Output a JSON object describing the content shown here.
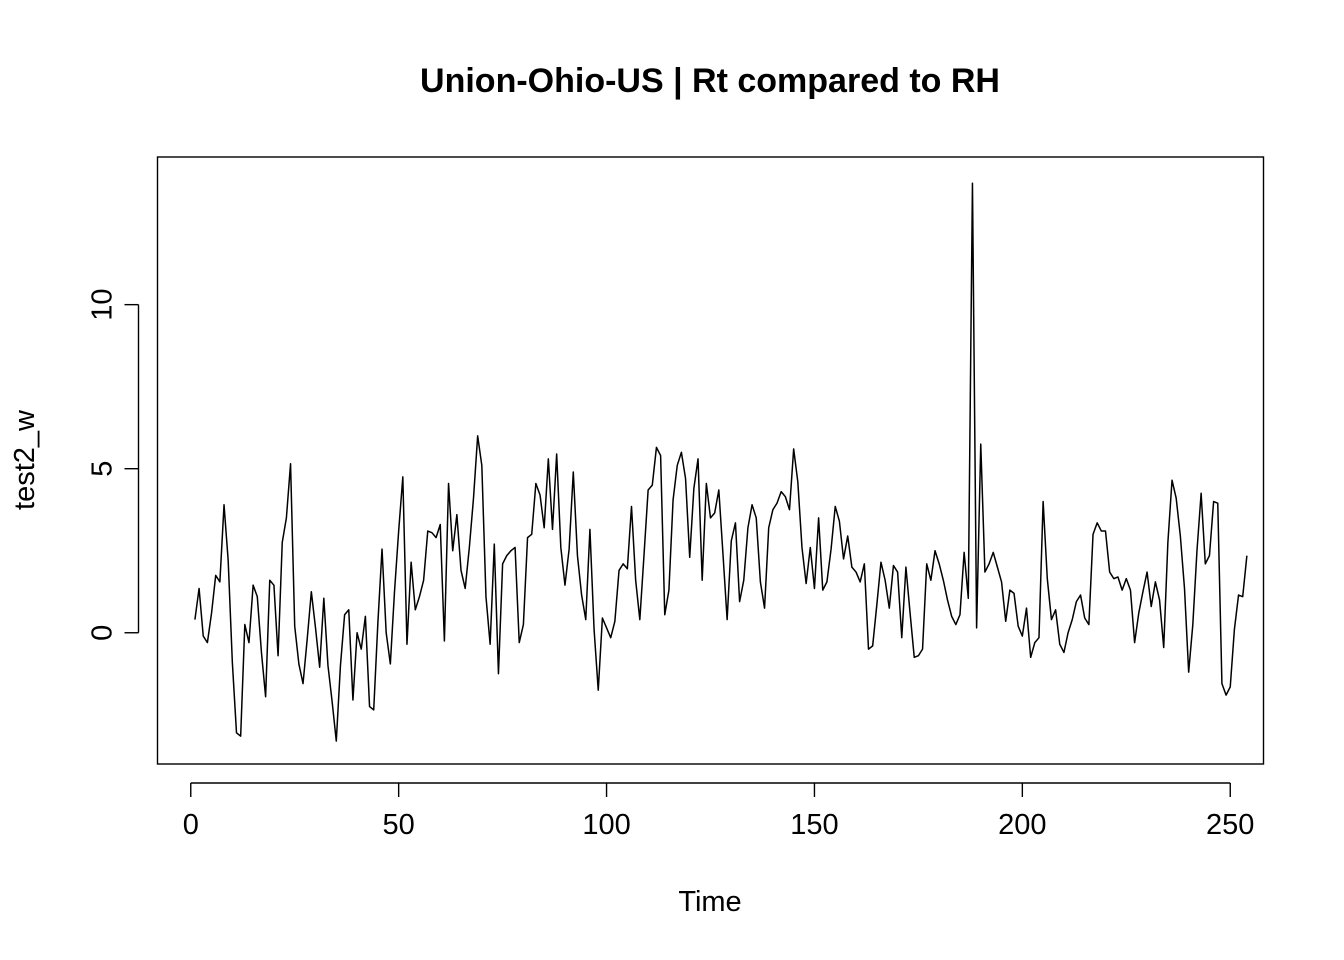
{
  "chart_data": {
    "type": "line",
    "title": "Union-Ohio-US | Rt compared to RH",
    "xlabel": "Time",
    "ylabel": "test2_w",
    "xlim": [
      -8,
      258
    ],
    "ylim": [
      -4,
      14.5
    ],
    "x_ticks": [
      0,
      50,
      100,
      150,
      200,
      250
    ],
    "y_ticks": [
      0,
      5,
      10
    ],
    "grid": false,
    "legend": "none",
    "line_color": "#000000",
    "series": [
      {
        "x_start": 1,
        "x_step": 1,
        "values": [
          0.4,
          1.35,
          -0.1,
          -0.3,
          0.6,
          1.75,
          1.55,
          3.9,
          2.2,
          -0.9,
          -3.05,
          -3.15,
          0.25,
          -0.3,
          1.45,
          1.1,
          -0.6,
          -1.95,
          1.6,
          1.45,
          -0.7,
          2.75,
          3.5,
          5.15,
          0.2,
          -0.95,
          -1.55,
          -0.2,
          1.25,
          0.15,
          -1.05,
          1.05,
          -1.0,
          -2.1,
          -3.3,
          -1.0,
          0.55,
          0.7,
          -2.05,
          0.0,
          -0.5,
          0.5,
          -2.25,
          -2.35,
          0.3,
          2.55,
          0.0,
          -0.95,
          1.25,
          3.1,
          4.75,
          -0.35,
          2.15,
          0.7,
          1.1,
          1.6,
          3.1,
          3.05,
          2.9,
          3.3,
          -0.25,
          4.55,
          2.5,
          3.6,
          1.9,
          1.35,
          2.6,
          4.1,
          6.0,
          5.1,
          1.1,
          -0.35,
          2.7,
          -1.25,
          2.1,
          2.35,
          2.5,
          2.6,
          -0.3,
          0.25,
          2.9,
          3.0,
          4.55,
          4.2,
          3.2,
          5.3,
          3.15,
          5.45,
          2.6,
          1.45,
          2.55,
          4.9,
          2.35,
          1.15,
          0.4,
          3.15,
          0.1,
          -1.75,
          0.45,
          0.15,
          -0.15,
          0.35,
          1.9,
          2.1,
          1.95,
          3.85,
          1.6,
          0.4,
          2.35,
          4.35,
          4.5,
          5.65,
          5.4,
          0.55,
          1.3,
          4.05,
          5.1,
          5.5,
          4.7,
          2.3,
          4.4,
          5.3,
          1.6,
          4.55,
          3.5,
          3.65,
          4.35,
          2.4,
          0.4,
          2.8,
          3.35,
          0.95,
          1.6,
          3.2,
          3.9,
          3.5,
          1.55,
          0.75,
          3.2,
          3.75,
          3.95,
          4.3,
          4.15,
          3.75,
          5.6,
          4.6,
          2.6,
          1.5,
          2.6,
          1.35,
          3.5,
          1.3,
          1.55,
          2.55,
          3.85,
          3.4,
          2.25,
          2.95,
          2.0,
          1.85,
          1.55,
          2.1,
          -0.5,
          -0.4,
          0.85,
          2.15,
          1.6,
          0.75,
          2.05,
          1.85,
          -0.15,
          2.0,
          0.6,
          -0.75,
          -0.7,
          -0.5,
          2.1,
          1.6,
          2.5,
          2.1,
          1.6,
          1.0,
          0.5,
          0.25,
          0.55,
          2.45,
          1.05,
          13.7,
          0.15,
          5.75,
          1.85,
          2.1,
          2.45,
          2.0,
          1.55,
          0.35,
          1.3,
          1.2,
          0.2,
          -0.1,
          0.75,
          -0.75,
          -0.3,
          -0.15,
          4.0,
          1.65,
          0.4,
          0.7,
          -0.35,
          -0.6,
          0.0,
          0.4,
          0.95,
          1.15,
          0.45,
          0.25,
          3.0,
          3.35,
          3.1,
          3.1,
          1.85,
          1.65,
          1.7,
          1.3,
          1.65,
          1.3,
          -0.3,
          0.6,
          1.25,
          1.85,
          0.8,
          1.55,
          1.0,
          -0.45,
          2.75,
          4.65,
          4.1,
          2.95,
          1.35,
          -1.2,
          0.25,
          2.5,
          4.25,
          2.1,
          2.35,
          4.0,
          3.95,
          -1.55,
          -1.9,
          -1.65,
          0.1,
          1.15,
          1.1,
          2.35
        ]
      }
    ]
  }
}
